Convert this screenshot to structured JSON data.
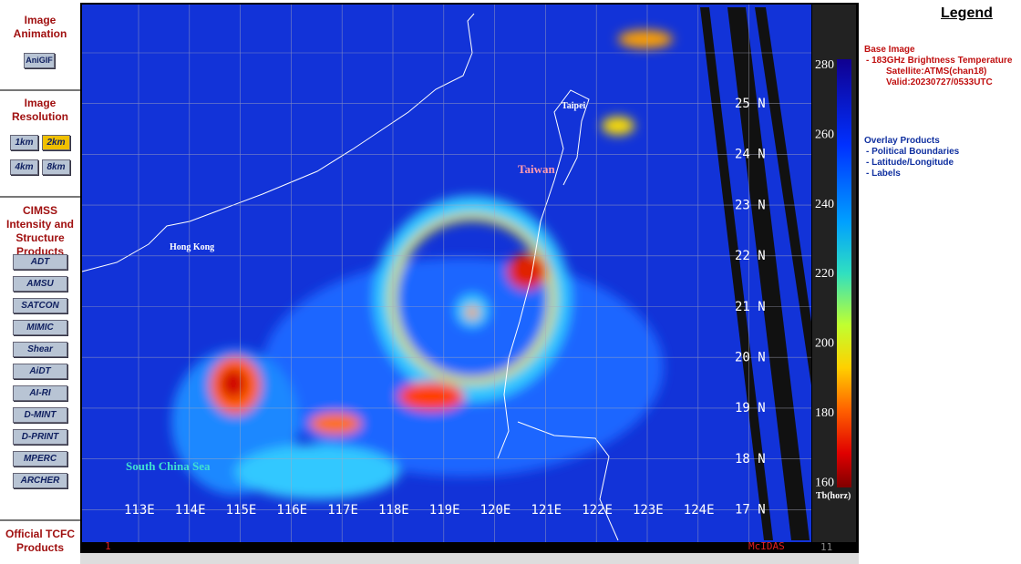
{
  "sidebar": {
    "sections": [
      {
        "title": "Image Animation",
        "buttons": [
          "AniGIF"
        ]
      },
      {
        "title": "Image Resolution",
        "buttons": [
          "1km",
          "2km",
          "4km",
          "8km"
        ]
      },
      {
        "title": "CIMSS Intensity and Structure Products",
        "buttons": [
          "ADT",
          "AMSU",
          "SATCON",
          "MIMIC",
          "Shear",
          "AiDT",
          "AI-RI",
          "D-MINT",
          "D-PRINT",
          "MPERC",
          "ARCHER"
        ]
      },
      {
        "title": "Official TCFC Products",
        "buttons": []
      }
    ]
  },
  "map": {
    "lat_labels": [
      "25 N",
      "24 N",
      "23 N",
      "22 N",
      "21 N",
      "20 N",
      "19 N",
      "18 N",
      "17 N"
    ],
    "lon_labels": [
      "113E",
      "114E",
      "115E",
      "116E",
      "117E",
      "118E",
      "119E",
      "120E",
      "121E",
      "122E",
      "123E",
      "124E"
    ],
    "places": [
      "Taipei",
      "Taiwan",
      "Hong Kong",
      "South China Sea"
    ],
    "footer_left": "1",
    "footer_right": "McIDAS",
    "footer_num": "11"
  },
  "colorbar": {
    "ticks": [
      "280",
      "260",
      "240",
      "220",
      "200",
      "180",
      "160"
    ],
    "unit": "Tb(horz)"
  },
  "legend": {
    "title": "Legend",
    "base_title": "Base Image",
    "base_items": [
      "-  183GHz Brightness Temperature",
      "Satellite:ATMS(chan18)",
      "Valid:20230727/0533UTC"
    ],
    "overlay_title": "Overlay Products",
    "overlay_items": [
      "-  Political Boundaries",
      "-  Latitude/Longitude",
      "-  Labels"
    ]
  }
}
